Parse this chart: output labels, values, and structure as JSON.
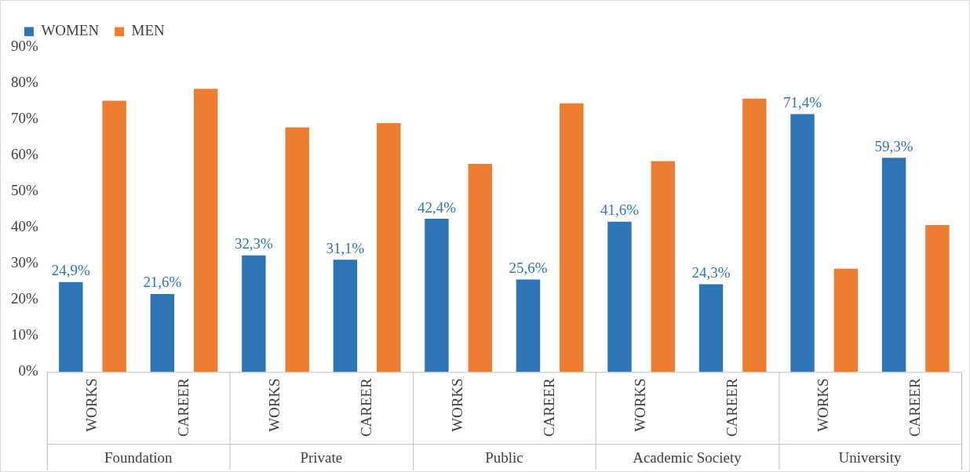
{
  "chart_data": {
    "type": "bar",
    "categories": [
      "WORKS",
      "CAREER",
      "WORKS",
      "CAREER",
      "WORKS",
      "CAREER",
      "WORKS",
      "CAREER",
      "WORKS",
      "CAREER"
    ],
    "series": [
      {
        "name": "WOMEN",
        "color": "#2e75b6",
        "values": [
          24.9,
          21.6,
          32.3,
          31.1,
          42.4,
          25.6,
          41.6,
          24.3,
          71.4,
          59.3
        ],
        "value_labels": [
          "24,9%",
          "21,6%",
          "32,3%",
          "31,1%",
          "42,4%",
          "25,6%",
          "41,6%",
          "24,3%",
          "71,4%",
          "59,3%"
        ]
      },
      {
        "name": "MEN",
        "color": "#ed7d31",
        "values": [
          75.1,
          78.4,
          67.7,
          68.9,
          57.6,
          74.4,
          58.4,
          75.7,
          28.6,
          40.7
        ]
      }
    ],
    "ylim": [
      0,
      90
    ],
    "yticks": [
      {
        "value": 0,
        "label": "0%"
      },
      {
        "value": 10,
        "label": "10%"
      },
      {
        "value": 20,
        "label": "20%"
      },
      {
        "value": 30,
        "label": "30%"
      },
      {
        "value": 40,
        "label": "40%"
      },
      {
        "value": 50,
        "label": "50%"
      },
      {
        "value": 60,
        "label": "60%"
      },
      {
        "value": 70,
        "label": "70%"
      },
      {
        "value": 80,
        "label": "80%"
      },
      {
        "value": 90,
        "label": "90%"
      }
    ],
    "legend": "top left",
    "annotations": [
      "Foundation",
      "Private",
      "Public",
      "Academic Society",
      "University"
    ]
  }
}
